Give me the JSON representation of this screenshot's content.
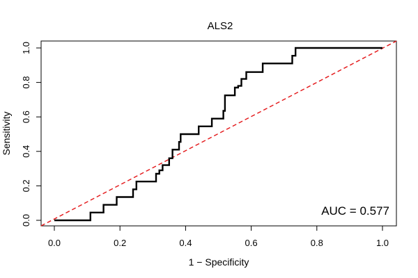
{
  "chart_data": {
    "type": "line",
    "title": "ALS2",
    "xlabel": "1 − Specificity",
    "ylabel": "Sensitivity",
    "xlim": [
      0,
      1
    ],
    "ylim": [
      0,
      1
    ],
    "x_ticks": [
      "0.0",
      "0.2",
      "0.4",
      "0.6",
      "0.8",
      "1.0"
    ],
    "y_ticks": [
      "0.0",
      "0.2",
      "0.4",
      "0.6",
      "0.8",
      "1.0"
    ],
    "grid": false,
    "annotation": "AUC = 0.577",
    "colors": {
      "roc": "#000000",
      "reference": "#e41a1c"
    },
    "series": [
      {
        "x": [
          0.0,
          0.11,
          0.11,
          0.15,
          0.15,
          0.19,
          0.19,
          0.24,
          0.24,
          0.25,
          0.25,
          0.31,
          0.31,
          0.32,
          0.32,
          0.33,
          0.33,
          0.35,
          0.35,
          0.36,
          0.36,
          0.38,
          0.38,
          0.385,
          0.385,
          0.44,
          0.44,
          0.48,
          0.48,
          0.515,
          0.515,
          0.52,
          0.52,
          0.55,
          0.55,
          0.56,
          0.56,
          0.57,
          0.57,
          0.585,
          0.585,
          0.635,
          0.635,
          0.725,
          0.725,
          0.735,
          0.735,
          1.0
        ],
        "y": [
          0.0,
          0.0,
          0.045,
          0.045,
          0.09,
          0.09,
          0.135,
          0.135,
          0.18,
          0.18,
          0.225,
          0.225,
          0.27,
          0.27,
          0.29,
          0.29,
          0.32,
          0.32,
          0.36,
          0.36,
          0.41,
          0.41,
          0.455,
          0.455,
          0.5,
          0.5,
          0.545,
          0.545,
          0.59,
          0.59,
          0.635,
          0.635,
          0.725,
          0.725,
          0.77,
          0.77,
          0.78,
          0.78,
          0.82,
          0.82,
          0.86,
          0.86,
          0.91,
          0.91,
          0.955,
          0.955,
          1.0,
          1.0
        ]
      }
    ]
  }
}
